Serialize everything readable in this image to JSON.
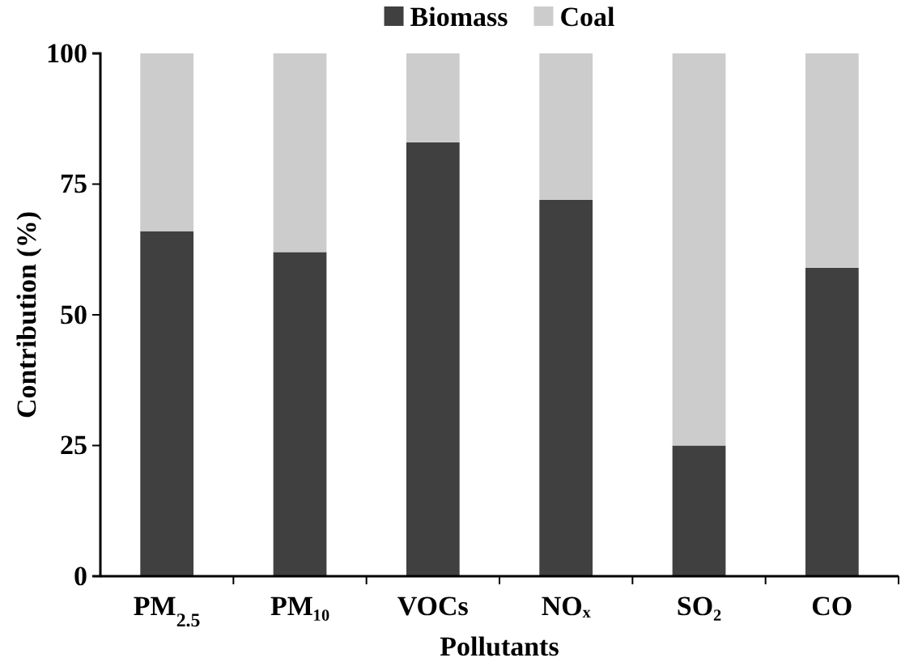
{
  "chart_data": {
    "type": "bar",
    "stacked": true,
    "xlabel": "Pollutants",
    "ylabel": "Contribution (%)",
    "categories": [
      "PM$_{2.5}$",
      "PM₁₀",
      "VOCs",
      "NOₓ",
      "SO₂",
      "CO"
    ],
    "series": [
      {
        "name": "Biomass",
        "color": "#404040",
        "values": [
          66,
          62,
          83,
          72,
          25,
          59
        ]
      },
      {
        "name": "Coal",
        "color": "#cccccc",
        "values": [
          34,
          38,
          17,
          28,
          75,
          41
        ]
      }
    ],
    "ylim": [
      0,
      100
    ],
    "yticks": [
      0,
      25,
      50,
      75,
      100
    ],
    "grid": false,
    "legend": "top"
  }
}
